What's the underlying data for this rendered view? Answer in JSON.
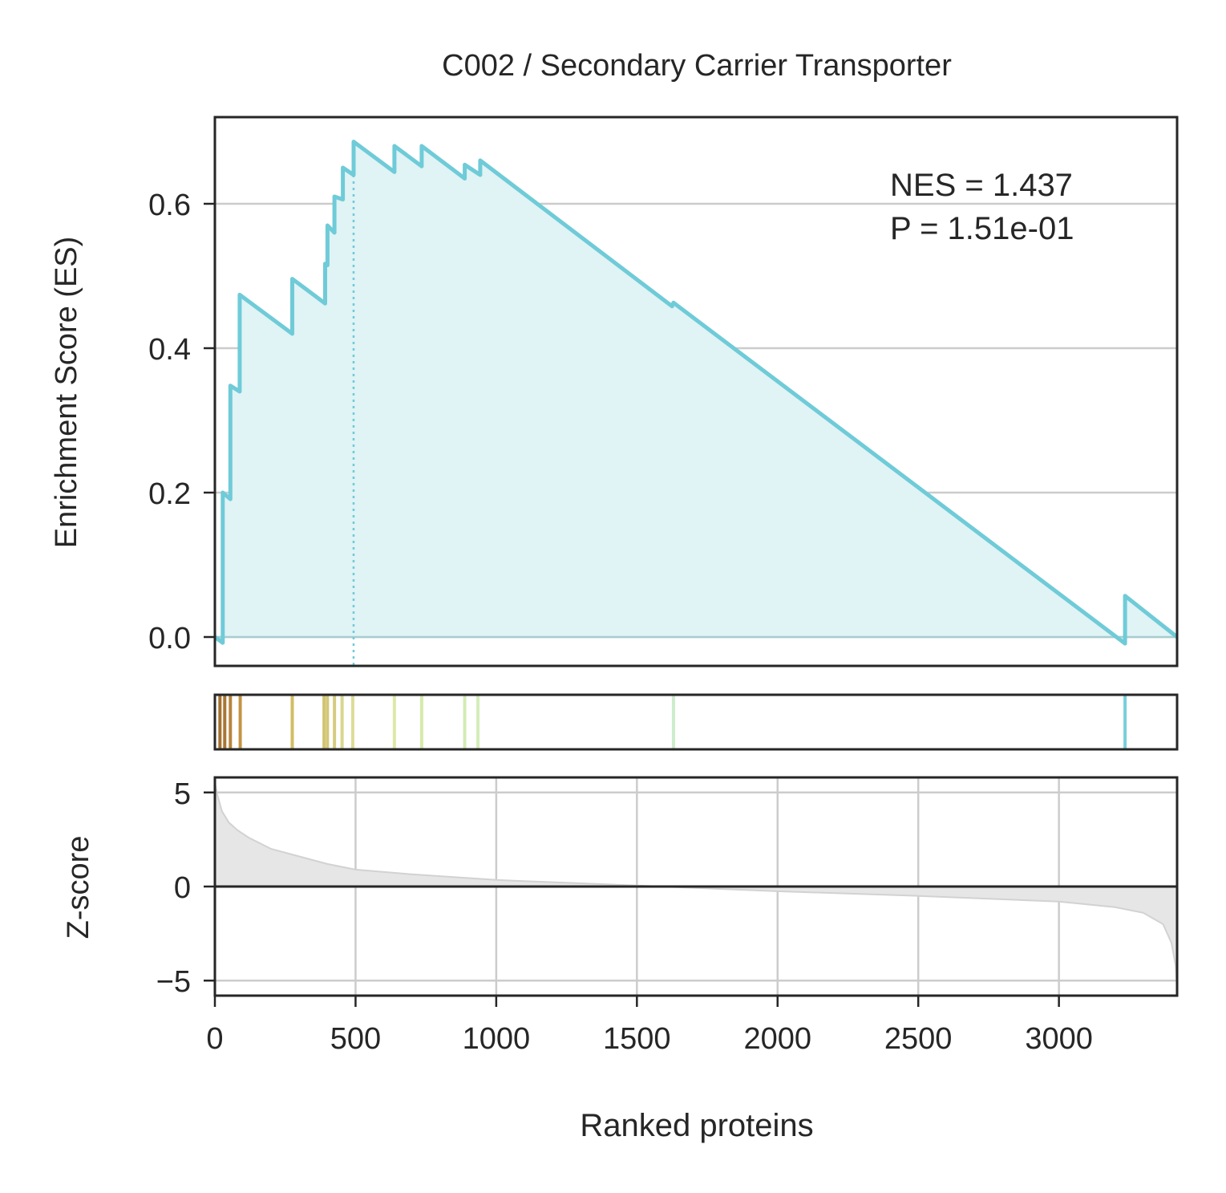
{
  "chart_data": {
    "type": "line",
    "title": "C002 / Secondary Carrier Transporter",
    "annotation": {
      "nes": "NES = 1.437",
      "pvalue": "P = 1.51e-01"
    },
    "colors": {
      "es_line": "#6fcbd8",
      "es_fill": "#e0f3f5",
      "grid": "#cccccc",
      "axes": "#262626",
      "zscore_fill": "#e6e6e6",
      "zscore_line": "#d2d2d2"
    },
    "es_panel": {
      "ylabel": "Enrichment Score (ES)",
      "ylim": [
        -0.04,
        0.72
      ],
      "yticks": [
        0.0,
        0.2,
        0.4,
        0.6
      ],
      "ytick_labels": [
        "0.0",
        "0.2",
        "0.4",
        "0.6"
      ],
      "grid": "horizontal",
      "max_es_rank": 493,
      "points": [
        [
          0,
          0.0
        ],
        [
          28,
          -0.008
        ],
        [
          28,
          0.2
        ],
        [
          55,
          0.191
        ],
        [
          55,
          0.348
        ],
        [
          88,
          0.34
        ],
        [
          88,
          0.474
        ],
        [
          275,
          0.42
        ],
        [
          275,
          0.496
        ],
        [
          392,
          0.462
        ],
        [
          392,
          0.517
        ],
        [
          400,
          0.515
        ],
        [
          400,
          0.57
        ],
        [
          425,
          0.56
        ],
        [
          425,
          0.61
        ],
        [
          455,
          0.606
        ],
        [
          455,
          0.65
        ],
        [
          493,
          0.64
        ],
        [
          493,
          0.686
        ],
        [
          638,
          0.644
        ],
        [
          638,
          0.68
        ],
        [
          735,
          0.652
        ],
        [
          735,
          0.68
        ],
        [
          888,
          0.635
        ],
        [
          888,
          0.654
        ],
        [
          943,
          0.64
        ],
        [
          943,
          0.66
        ],
        [
          1625,
          0.458
        ],
        [
          1630,
          0.463
        ],
        [
          3235,
          -0.009
        ],
        [
          3235,
          0.057
        ],
        [
          3420,
          0.0
        ]
      ]
    },
    "hits_panel": {
      "ranks": [
        18,
        35,
        55,
        90,
        275,
        388,
        400,
        425,
        452,
        490,
        638,
        735,
        888,
        935,
        1630,
        3235
      ],
      "colors": [
        "#a5702f",
        "#a97635",
        "#b6843c",
        "#c39442",
        "#d2bd63",
        "#d2c471",
        "#d3c777",
        "#d5cc81",
        "#d9d68f",
        "#dcdc97",
        "#dde8a8",
        "#d6eaaa",
        "#d3ebb4",
        "#d3edba",
        "#cdeccb",
        "#77cfda"
      ]
    },
    "zscore_panel": {
      "ylabel": "Z-score",
      "ylim": [
        -5.8,
        5.8
      ],
      "yticks": [
        5,
        0,
        -5
      ],
      "ytick_labels": [
        "5",
        "0",
        "−5"
      ],
      "points": [
        [
          0,
          5.5
        ],
        [
          10,
          4.8
        ],
        [
          25,
          4.0
        ],
        [
          50,
          3.4
        ],
        [
          80,
          3.0
        ],
        [
          120,
          2.6
        ],
        [
          200,
          2.0
        ],
        [
          300,
          1.6
        ],
        [
          400,
          1.2
        ],
        [
          500,
          0.9
        ],
        [
          700,
          0.65
        ],
        [
          1000,
          0.35
        ],
        [
          1500,
          0.05
        ],
        [
          2000,
          -0.25
        ],
        [
          2500,
          -0.5
        ],
        [
          3000,
          -0.8
        ],
        [
          3200,
          -1.1
        ],
        [
          3300,
          -1.4
        ],
        [
          3370,
          -2.0
        ],
        [
          3400,
          -3.0
        ],
        [
          3415,
          -4.2
        ],
        [
          3420,
          -5.6
        ]
      ]
    },
    "x_axis": {
      "xlabel": "Ranked proteins",
      "xlim": [
        0,
        3420
      ],
      "xticks": [
        0,
        500,
        1000,
        1500,
        2000,
        2500,
        3000
      ],
      "xtick_labels": [
        "0",
        "500",
        "1000",
        "1500",
        "2000",
        "2500",
        "3000"
      ]
    }
  }
}
